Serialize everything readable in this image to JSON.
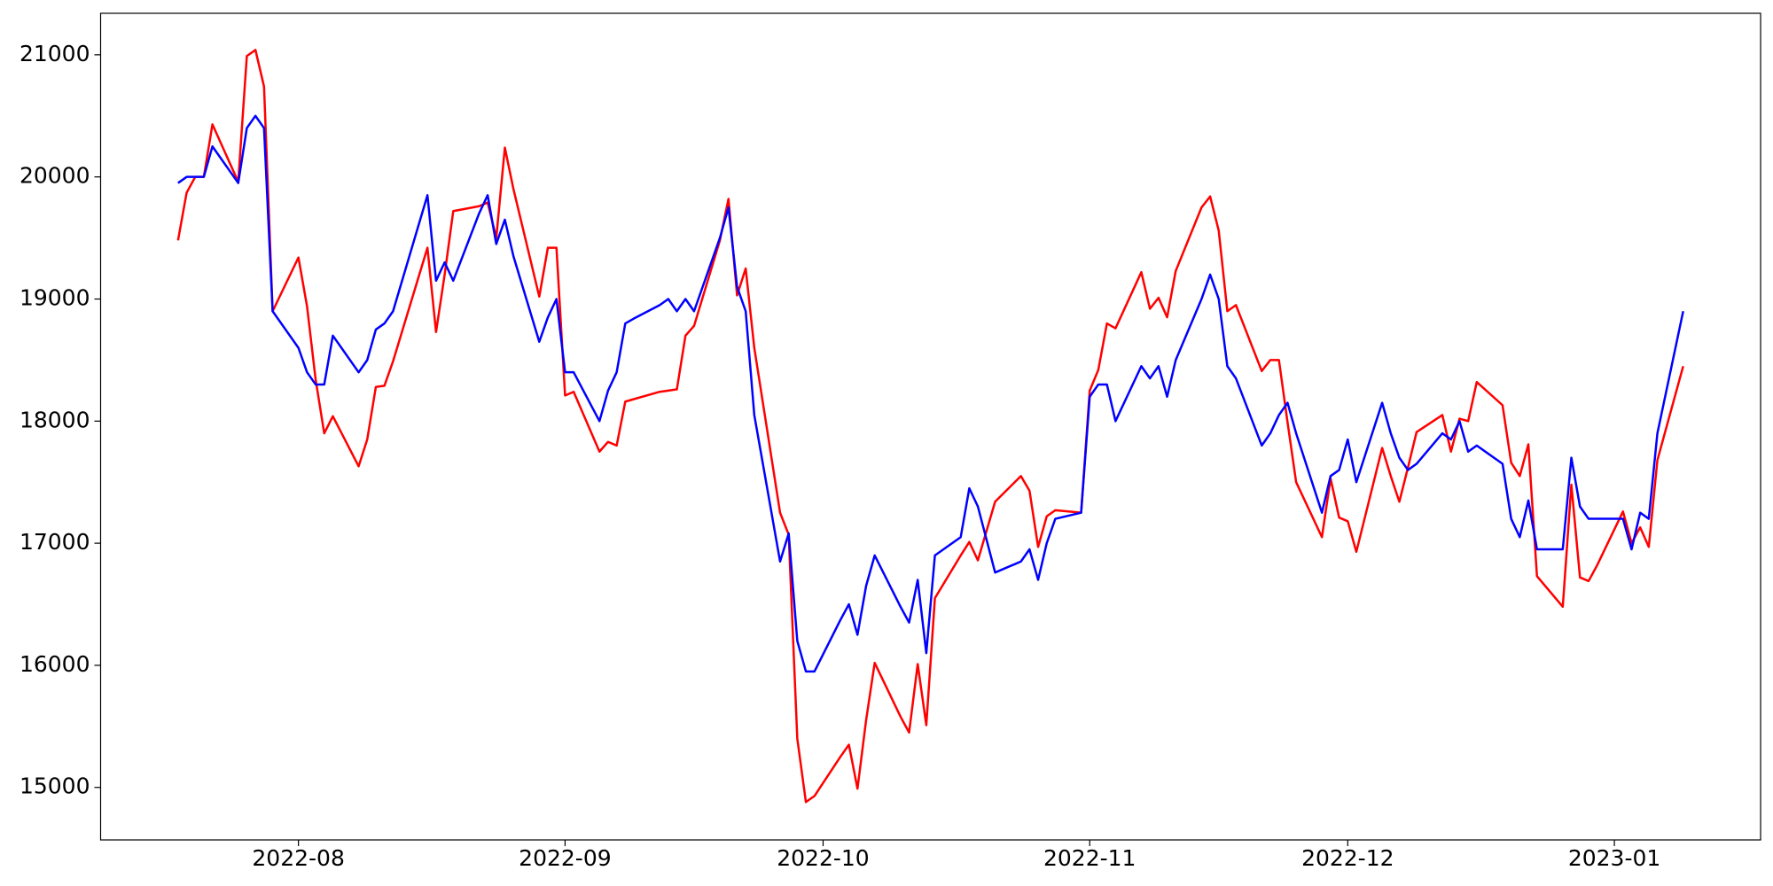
{
  "chart_data": {
    "type": "line",
    "x": [
      "2022-07-18",
      "2022-07-19",
      "2022-07-20",
      "2022-07-21",
      "2022-07-22",
      "2022-07-25",
      "2022-07-26",
      "2022-07-27",
      "2022-07-28",
      "2022-07-29",
      "2022-08-01",
      "2022-08-02",
      "2022-08-03",
      "2022-08-04",
      "2022-08-05",
      "2022-08-08",
      "2022-08-09",
      "2022-08-10",
      "2022-08-11",
      "2022-08-12",
      "2022-08-16",
      "2022-08-17",
      "2022-08-18",
      "2022-08-19",
      "2022-08-22",
      "2022-08-23",
      "2022-08-24",
      "2022-08-25",
      "2022-08-26",
      "2022-08-29",
      "2022-08-30",
      "2022-08-31",
      "2022-09-01",
      "2022-09-02",
      "2022-09-05",
      "2022-09-06",
      "2022-09-07",
      "2022-09-08",
      "2022-09-09",
      "2022-09-12",
      "2022-09-13",
      "2022-09-14",
      "2022-09-15",
      "2022-09-16",
      "2022-09-19",
      "2022-09-20",
      "2022-09-21",
      "2022-09-22",
      "2022-09-23",
      "2022-09-26",
      "2022-09-27",
      "2022-09-28",
      "2022-09-29",
      "2022-09-30",
      "2022-10-03",
      "2022-10-04",
      "2022-10-05",
      "2022-10-06",
      "2022-10-07",
      "2022-10-10",
      "2022-10-11",
      "2022-10-12",
      "2022-10-13",
      "2022-10-14",
      "2022-10-17",
      "2022-10-18",
      "2022-10-19",
      "2022-10-20",
      "2022-10-21",
      "2022-10-24",
      "2022-10-25",
      "2022-10-26",
      "2022-10-27",
      "2022-10-28",
      "2022-10-31",
      "2022-11-01",
      "2022-11-02",
      "2022-11-03",
      "2022-11-04",
      "2022-11-07",
      "2022-11-08",
      "2022-11-09",
      "2022-11-10",
      "2022-11-11",
      "2022-11-14",
      "2022-11-15",
      "2022-11-16",
      "2022-11-17",
      "2022-11-18",
      "2022-11-21",
      "2022-11-22",
      "2022-11-23",
      "2022-11-24",
      "2022-11-25",
      "2022-11-28",
      "2022-11-29",
      "2022-11-30",
      "2022-12-01",
      "2022-12-02",
      "2022-12-05",
      "2022-12-06",
      "2022-12-07",
      "2022-12-08",
      "2022-12-09",
      "2022-12-12",
      "2022-12-13",
      "2022-12-14",
      "2022-12-15",
      "2022-12-16",
      "2022-12-19",
      "2022-12-20",
      "2022-12-21",
      "2022-12-22",
      "2022-12-23",
      "2022-12-26",
      "2022-12-27",
      "2022-12-28",
      "2022-12-29",
      "2022-12-30",
      "2023-01-02",
      "2023-01-03",
      "2023-01-04",
      "2023-01-05",
      "2023-01-06",
      "2023-01-09"
    ],
    "series": [
      {
        "color": "#ff0000",
        "values": [
          19480,
          19870,
          20000,
          20000,
          20430,
          19960,
          20990,
          21040,
          20740,
          18900,
          19340,
          18940,
          18340,
          17900,
          18040,
          17630,
          17850,
          18280,
          18290,
          18490,
          19420,
          18730,
          19200,
          19720,
          19760,
          19790,
          19500,
          20240,
          19900,
          19020,
          19420,
          19420,
          18210,
          18240,
          17750,
          17830,
          17800,
          18160,
          18180,
          18240,
          18250,
          18260,
          18700,
          18780,
          19480,
          19820,
          19030,
          19250,
          18600,
          17250,
          17070,
          15400,
          14880,
          14930,
          15250,
          15350,
          14990,
          15550,
          16020,
          15580,
          15450,
          16010,
          15510,
          16550,
          16900,
          17010,
          16860,
          17100,
          17340,
          17550,
          17430,
          16970,
          17220,
          17270,
          17250,
          18250,
          18420,
          18800,
          18760,
          19220,
          18920,
          19010,
          18850,
          19230,
          19750,
          19840,
          19560,
          18900,
          18950,
          18410,
          18500,
          18500,
          17990,
          17500,
          17050,
          17530,
          17210,
          17180,
          16930,
          17780,
          17550,
          17340,
          17620,
          17910,
          18050,
          17750,
          18020,
          18000,
          18320,
          18130,
          17660,
          17550,
          17810,
          16730,
          16480,
          17480,
          16720,
          16690,
          16820,
          17260,
          17000,
          17130,
          16970,
          17680,
          18450
        ]
      },
      {
        "color": "#0000ff",
        "values": [
          19950,
          20000,
          20000,
          20000,
          20250,
          19950,
          20400,
          20500,
          20400,
          18900,
          18600,
          18400,
          18300,
          18300,
          18700,
          18400,
          18500,
          18750,
          18800,
          18900,
          19850,
          19150,
          19300,
          19150,
          19700,
          19850,
          19450,
          19650,
          19350,
          18650,
          18850,
          19000,
          18400,
          18400,
          18000,
          18250,
          18400,
          18800,
          18840,
          18950,
          19000,
          18900,
          19000,
          18900,
          19500,
          19750,
          19100,
          18900,
          18050,
          16850,
          17080,
          16200,
          15950,
          15950,
          16370,
          16500,
          16250,
          16650,
          16900,
          16480,
          16350,
          16700,
          16100,
          16900,
          17050,
          17450,
          17300,
          17030,
          16760,
          16850,
          16950,
          16700,
          17000,
          17200,
          17250,
          18200,
          18300,
          18300,
          18000,
          18450,
          18350,
          18450,
          18200,
          18500,
          19000,
          19200,
          19000,
          18450,
          18350,
          17800,
          17900,
          18050,
          18150,
          17900,
          17250,
          17550,
          17600,
          17850,
          17500,
          18150,
          17900,
          17700,
          17600,
          17650,
          17900,
          17850,
          18000,
          17750,
          17800,
          17650,
          17200,
          17050,
          17350,
          16950,
          16950,
          17700,
          17300,
          17200,
          17200,
          17200,
          16950,
          17250,
          17200,
          17900,
          18900
        ]
      }
    ],
    "xlim": [
      "2022-07-09",
      "2023-01-18"
    ],
    "xticks": [
      "2022-08",
      "2022-09",
      "2022-10",
      "2022-11",
      "2022-12",
      "2023-01"
    ],
    "ylim": [
      14570,
      21340
    ],
    "yticks": [
      15000,
      16000,
      17000,
      18000,
      19000,
      20000,
      21000
    ],
    "grid": false
  }
}
